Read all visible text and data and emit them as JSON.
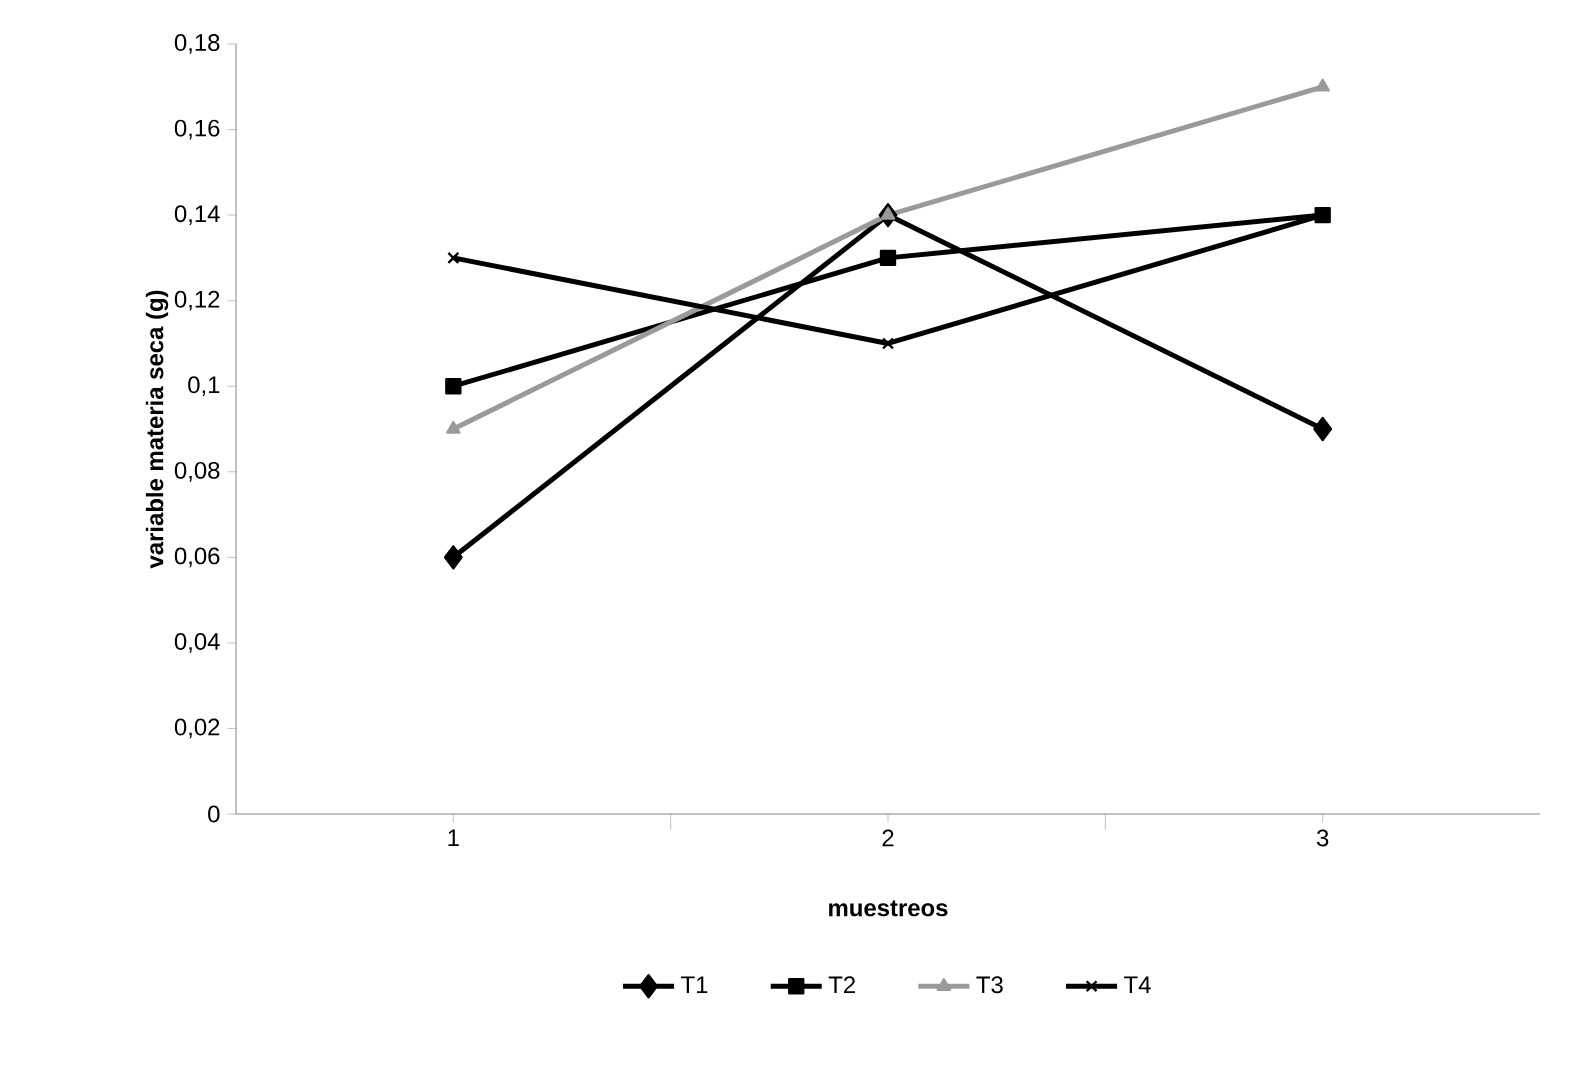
{
  "chart_data": {
    "type": "line",
    "xlabel": "muestreos",
    "ylabel": "variable  materia seca  (g)",
    "categories": [
      "1",
      "2",
      "3"
    ],
    "series": [
      {
        "name": "T1",
        "color": "#000000",
        "marker": "diamond",
        "values": [
          0.06,
          0.14,
          0.09
        ]
      },
      {
        "name": "T2",
        "color": "#000000",
        "marker": "square",
        "values": [
          0.1,
          0.13,
          0.14
        ]
      },
      {
        "name": "T3",
        "color": "#9a9a9a",
        "marker": "triangle",
        "values": [
          0.09,
          0.14,
          0.17
        ]
      },
      {
        "name": "T4",
        "color": "#000000",
        "marker": "cross",
        "values": [
          0.13,
          0.11,
          0.14
        ]
      }
    ],
    "ylim": [
      0,
      0.18
    ],
    "yticks": [
      {
        "value": 0,
        "label": "0"
      },
      {
        "value": 0.02,
        "label": "0,02"
      },
      {
        "value": 0.04,
        "label": "0,04"
      },
      {
        "value": 0.06,
        "label": "0,06"
      },
      {
        "value": 0.08,
        "label": "0,08"
      },
      {
        "value": 0.1,
        "label": "0,1"
      },
      {
        "value": 0.12,
        "label": "0,12"
      },
      {
        "value": 0.14,
        "label": "0,14"
      },
      {
        "value": 0.16,
        "label": "0,16"
      },
      {
        "value": 0.18,
        "label": "0,18"
      }
    ],
    "grid": false,
    "legend": "bottom",
    "line_style": "solid"
  }
}
